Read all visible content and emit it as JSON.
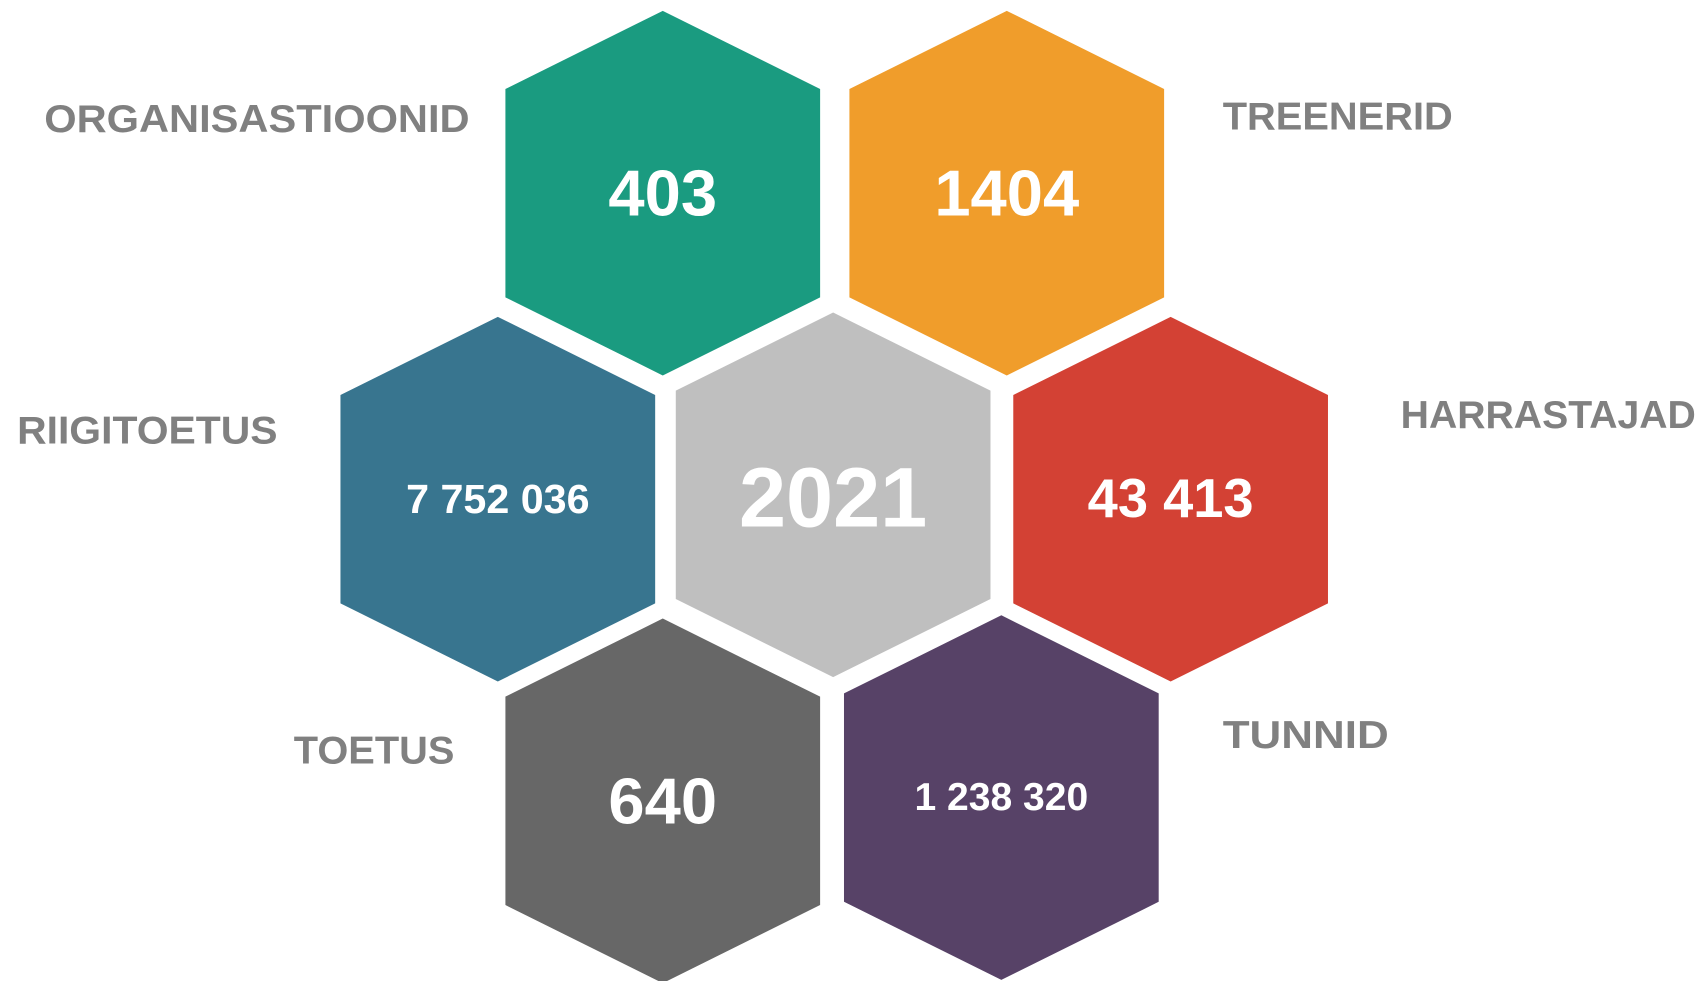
{
  "center": {
    "value": "2021",
    "color": "#bfbfbf"
  },
  "nodes": [
    {
      "label": "ORGANISASTIOONID",
      "value": "403",
      "color": "#1a9b80"
    },
    {
      "label": "TREENERID",
      "value": "1404",
      "color": "#f09d2b"
    },
    {
      "label": "RIIGITOETUS",
      "value": "7 752 036",
      "color": "#38758f"
    },
    {
      "label": "HARRASTAJAD",
      "value": "43 413",
      "color": "#d34134"
    },
    {
      "label": "TOETUS",
      "value": "640",
      "color": "#676767"
    },
    {
      "label": "TUNNID",
      "value": "1 238 320",
      "color": "#574267"
    }
  ]
}
